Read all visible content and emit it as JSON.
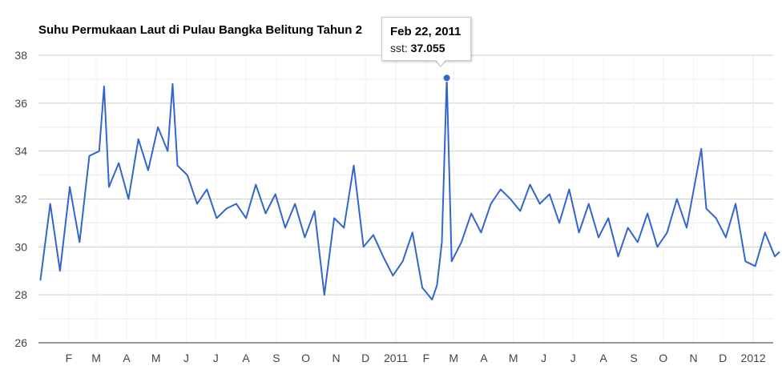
{
  "chart_data": {
    "type": "line",
    "title": "Suhu Permukaan Laut di Pulau Bangka Belitung Tahun 2",
    "xlabel": "",
    "ylabel": "",
    "ylim": [
      26,
      38
    ],
    "yticks": [
      "26",
      "28",
      "30",
      "32",
      "34",
      "36",
      "38"
    ],
    "xticks": [
      "F",
      "M",
      "A",
      "M",
      "J",
      "J",
      "A",
      "S",
      "O",
      "N",
      "D",
      "2011",
      "F",
      "M",
      "A",
      "M",
      "J",
      "J",
      "A",
      "S",
      "O",
      "N",
      "D",
      "2012"
    ],
    "grid": true,
    "legend": "none",
    "line_color": "#3366cc",
    "series": [
      {
        "name": "sst",
        "x": [
          "2010-01-03",
          "2010-01-13",
          "2010-01-23",
          "2010-02-02",
          "2010-02-12",
          "2010-02-22",
          "2010-03-04",
          "2010-03-09",
          "2010-03-14",
          "2010-03-24",
          "2010-04-03",
          "2010-04-13",
          "2010-04-23",
          "2010-05-03",
          "2010-05-13",
          "2010-05-18",
          "2010-05-23",
          "2010-06-02",
          "2010-06-12",
          "2010-06-22",
          "2010-07-02",
          "2010-07-12",
          "2010-07-22",
          "2010-08-01",
          "2010-08-11",
          "2010-08-21",
          "2010-08-31",
          "2010-09-10",
          "2010-09-20",
          "2010-09-30",
          "2010-10-10",
          "2010-10-20",
          "2010-10-30",
          "2010-11-09",
          "2010-11-19",
          "2010-11-29",
          "2010-12-09",
          "2010-12-19",
          "2010-12-29",
          "2011-01-08",
          "2011-01-18",
          "2011-01-28",
          "2011-02-07",
          "2011-02-12",
          "2011-02-17",
          "2011-02-22",
          "2011-02-27",
          "2011-03-09",
          "2011-03-19",
          "2011-03-29",
          "2011-04-08",
          "2011-04-18",
          "2011-04-28",
          "2011-05-08",
          "2011-05-18",
          "2011-05-28",
          "2011-06-07",
          "2011-06-17",
          "2011-06-27",
          "2011-07-07",
          "2011-07-17",
          "2011-07-27",
          "2011-08-06",
          "2011-08-16",
          "2011-08-26",
          "2011-09-05",
          "2011-09-15",
          "2011-09-25",
          "2011-10-05",
          "2011-10-15",
          "2011-10-25",
          "2011-11-04",
          "2011-11-09",
          "2011-11-14",
          "2011-11-24",
          "2011-12-04",
          "2011-12-14",
          "2011-12-24",
          "2012-01-03",
          "2012-01-13",
          "2012-01-23",
          "2012-01-28"
        ],
        "values": [
          28.6,
          31.8,
          29.0,
          32.5,
          30.2,
          33.8,
          34.0,
          36.7,
          32.5,
          33.5,
          32.0,
          34.5,
          33.2,
          35.0,
          34.0,
          36.8,
          33.4,
          33.0,
          31.8,
          32.4,
          31.2,
          31.6,
          31.8,
          31.2,
          32.6,
          31.4,
          32.2,
          30.8,
          31.8,
          30.4,
          31.5,
          28.0,
          31.2,
          30.8,
          33.4,
          30.0,
          30.5,
          29.6,
          28.8,
          29.4,
          30.6,
          28.3,
          27.8,
          28.4,
          30.2,
          37.06,
          29.4,
          30.2,
          31.4,
          30.6,
          31.8,
          32.4,
          32.0,
          31.5,
          32.6,
          31.8,
          32.2,
          31.0,
          32.4,
          30.6,
          31.8,
          30.4,
          31.2,
          29.6,
          30.8,
          30.2,
          31.4,
          30.0,
          30.6,
          32.0,
          30.8,
          33.0,
          34.1,
          31.6,
          31.2,
          30.4,
          31.8,
          29.4,
          29.2,
          30.6,
          29.6,
          29.8
        ]
      }
    ],
    "highlight": {
      "date": "Feb 22, 2011",
      "series_label": "sst:",
      "value_text": "37.055",
      "x": "2011-02-22",
      "y": 37.055
    }
  }
}
